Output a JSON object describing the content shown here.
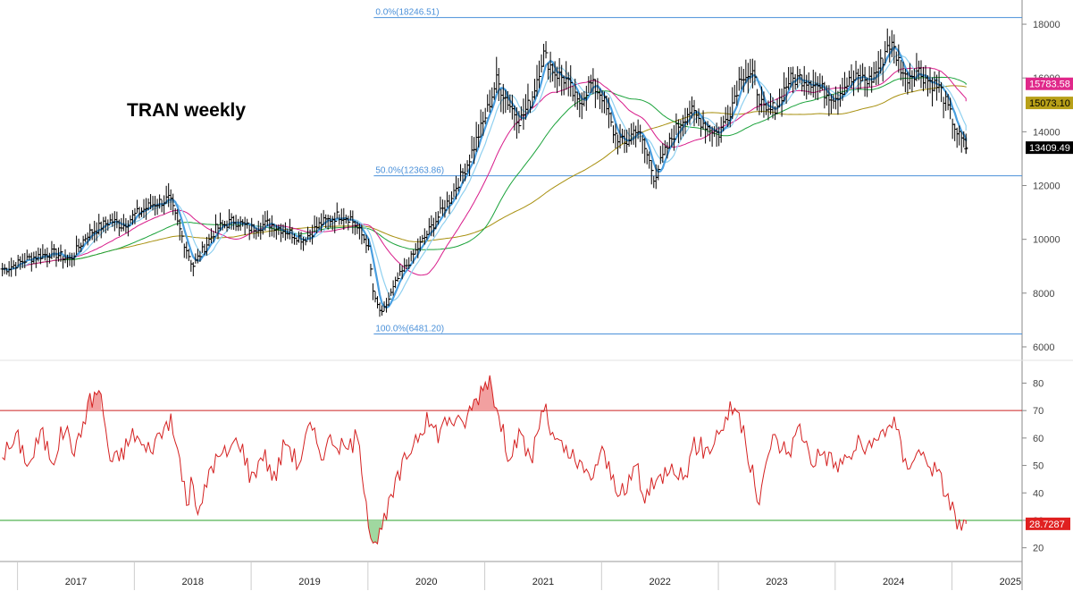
{
  "chart_data": [
    {
      "type": "line",
      "title": "TRAN weekly",
      "price_axis": {
        "ticks": [
          6000,
          8000,
          10000,
          12000,
          14000,
          16000,
          18000
        ],
        "ylim": [
          5600,
          18900
        ]
      },
      "x_axis": {
        "labels": [
          "2017",
          "2018",
          "2019",
          "2020",
          "2021",
          "2022",
          "2023",
          "2024",
          "2025"
        ]
      },
      "price_series": {
        "name": "",
        "points": [
          [
            2016.9,
            8900
          ],
          [
            2017.1,
            9300
          ],
          [
            2017.3,
            9500
          ],
          [
            2017.45,
            9250
          ],
          [
            2017.6,
            10200
          ],
          [
            2017.8,
            10700
          ],
          [
            2017.9,
            10500
          ],
          [
            2018.0,
            10900
          ],
          [
            2018.15,
            11300
          ],
          [
            2018.3,
            11500
          ],
          [
            2018.4,
            10200
          ],
          [
            2018.5,
            9000
          ],
          [
            2018.6,
            9700
          ],
          [
            2018.7,
            10400
          ],
          [
            2018.85,
            10700
          ],
          [
            2019.0,
            10400
          ],
          [
            2019.15,
            10600
          ],
          [
            2019.3,
            10300
          ],
          [
            2019.45,
            10000
          ],
          [
            2019.6,
            10600
          ],
          [
            2019.75,
            10900
          ],
          [
            2019.85,
            10800
          ],
          [
            2020.0,
            9800
          ],
          [
            2020.05,
            7800
          ],
          [
            2020.12,
            7200
          ],
          [
            2020.25,
            8500
          ],
          [
            2020.4,
            9500
          ],
          [
            2020.55,
            10500
          ],
          [
            2020.7,
            11500
          ],
          [
            2020.85,
            12800
          ],
          [
            2021.0,
            14500
          ],
          [
            2021.1,
            15900
          ],
          [
            2021.2,
            15100
          ],
          [
            2021.3,
            14400
          ],
          [
            2021.4,
            15200
          ],
          [
            2021.5,
            16900
          ],
          [
            2021.6,
            16200
          ],
          [
            2021.7,
            15900
          ],
          [
            2021.8,
            15000
          ],
          [
            2021.9,
            15800
          ],
          [
            2022.0,
            15400
          ],
          [
            2022.1,
            14000
          ],
          [
            2022.2,
            13500
          ],
          [
            2022.3,
            14200
          ],
          [
            2022.4,
            13000
          ],
          [
            2022.45,
            12300
          ],
          [
            2022.55,
            13300
          ],
          [
            2022.65,
            14200
          ],
          [
            2022.75,
            14800
          ],
          [
            2022.85,
            14400
          ],
          [
            2023.0,
            13900
          ],
          [
            2023.1,
            14800
          ],
          [
            2023.2,
            16200
          ],
          [
            2023.3,
            16000
          ],
          [
            2023.4,
            14600
          ],
          [
            2023.5,
            15000
          ],
          [
            2023.6,
            15900
          ],
          [
            2023.7,
            16000
          ],
          [
            2023.8,
            15900
          ],
          [
            2023.9,
            15500
          ],
          [
            2024.0,
            15300
          ],
          [
            2024.1,
            15800
          ],
          [
            2024.2,
            16000
          ],
          [
            2024.3,
            15900
          ],
          [
            2024.4,
            16600
          ],
          [
            2024.45,
            17300
          ],
          [
            2024.5,
            17100
          ],
          [
            2024.6,
            16000
          ],
          [
            2024.7,
            16300
          ],
          [
            2024.8,
            15900
          ],
          [
            2024.9,
            15600
          ],
          [
            2024.97,
            14800
          ],
          [
            2025.05,
            13900
          ],
          [
            2025.12,
            13409
          ]
        ],
        "last_value": "13409.49"
      },
      "moving_averages": [
        {
          "name": "",
          "color": "#d81b8a",
          "last_label": "15783.58"
        },
        {
          "name": "",
          "color": "#1aa23a",
          "last_label": ""
        },
        {
          "name": "",
          "color": "#a89010",
          "last_label": "15073.10"
        },
        {
          "name": "",
          "color": "#4a9fe0",
          "last_label": ""
        },
        {
          "name": "",
          "color": "#8fd0f0",
          "last_label": ""
        }
      ],
      "fibonacci": [
        {
          "label": "0.0%(18246.51)",
          "value": 18246.51
        },
        {
          "label": "50.0%(12363.86)",
          "value": 12363.86
        },
        {
          "label": "100.0%(6481.20)",
          "value": 6481.2
        }
      ],
      "colors": {
        "bars": "#000000",
        "fib": "#4a90d9",
        "grid": "#dddddd"
      }
    },
    {
      "type": "line",
      "title": "",
      "oscillator_axis": {
        "ticks": [
          20,
          30,
          40,
          50,
          60,
          70,
          80
        ],
        "ylim": [
          15,
          87
        ]
      },
      "upper_band": 70,
      "lower_band": 30,
      "oscillator_series": {
        "name": "",
        "points": [
          [
            2016.9,
            55
          ],
          [
            2017.0,
            60
          ],
          [
            2017.1,
            50
          ],
          [
            2017.2,
            62
          ],
          [
            2017.3,
            52
          ],
          [
            2017.4,
            64
          ],
          [
            2017.5,
            55
          ],
          [
            2017.6,
            72
          ],
          [
            2017.7,
            78
          ],
          [
            2017.75,
            65
          ],
          [
            2017.8,
            50
          ],
          [
            2017.9,
            55
          ],
          [
            2018.0,
            62
          ],
          [
            2018.1,
            55
          ],
          [
            2018.2,
            60
          ],
          [
            2018.3,
            67
          ],
          [
            2018.4,
            50
          ],
          [
            2018.45,
            35
          ],
          [
            2018.5,
            45
          ],
          [
            2018.55,
            30
          ],
          [
            2018.65,
            50
          ],
          [
            2018.8,
            55
          ],
          [
            2018.9,
            60
          ],
          [
            2019.0,
            45
          ],
          [
            2019.1,
            55
          ],
          [
            2019.2,
            45
          ],
          [
            2019.3,
            60
          ],
          [
            2019.4,
            50
          ],
          [
            2019.5,
            64
          ],
          [
            2019.6,
            55
          ],
          [
            2019.7,
            60
          ],
          [
            2019.8,
            55
          ],
          [
            2019.9,
            60
          ],
          [
            2019.95,
            50
          ],
          [
            2020.0,
            32
          ],
          [
            2020.05,
            22
          ],
          [
            2020.12,
            26
          ],
          [
            2020.2,
            38
          ],
          [
            2020.3,
            50
          ],
          [
            2020.4,
            60
          ],
          [
            2020.5,
            66
          ],
          [
            2020.6,
            62
          ],
          [
            2020.7,
            68
          ],
          [
            2020.8,
            64
          ],
          [
            2020.9,
            72
          ],
          [
            2021.0,
            80
          ],
          [
            2021.05,
            83
          ],
          [
            2021.1,
            70
          ],
          [
            2021.2,
            55
          ],
          [
            2021.3,
            60
          ],
          [
            2021.4,
            52
          ],
          [
            2021.5,
            72
          ],
          [
            2021.6,
            58
          ],
          [
            2021.7,
            55
          ],
          [
            2021.8,
            50
          ],
          [
            2021.9,
            45
          ],
          [
            2022.0,
            55
          ],
          [
            2022.1,
            45
          ],
          [
            2022.2,
            38
          ],
          [
            2022.3,
            52
          ],
          [
            2022.35,
            38
          ],
          [
            2022.5,
            45
          ],
          [
            2022.6,
            52
          ],
          [
            2022.7,
            45
          ],
          [
            2022.8,
            58
          ],
          [
            2022.9,
            55
          ],
          [
            2023.0,
            62
          ],
          [
            2023.1,
            70
          ],
          [
            2023.15,
            72
          ],
          [
            2023.25,
            55
          ],
          [
            2023.35,
            35
          ],
          [
            2023.45,
            60
          ],
          [
            2023.6,
            55
          ],
          [
            2023.7,
            64
          ],
          [
            2023.8,
            52
          ],
          [
            2023.9,
            55
          ],
          [
            2024.0,
            50
          ],
          [
            2024.1,
            52
          ],
          [
            2024.2,
            58
          ],
          [
            2024.3,
            55
          ],
          [
            2024.4,
            62
          ],
          [
            2024.5,
            67
          ],
          [
            2024.6,
            50
          ],
          [
            2024.7,
            55
          ],
          [
            2024.8,
            52
          ],
          [
            2024.9,
            45
          ],
          [
            2025.0,
            35
          ],
          [
            2025.05,
            28
          ],
          [
            2025.12,
            28.73
          ]
        ],
        "last_value": "28.7287"
      },
      "colors": {
        "line": "#d42020",
        "upper_band": "#cc2020",
        "lower_band": "#2aa02a",
        "overbought_fill": "#f2a0a0",
        "oversold_fill": "#a0d8a0"
      }
    }
  ],
  "domain_years": [
    2016.85,
    2025.6
  ]
}
